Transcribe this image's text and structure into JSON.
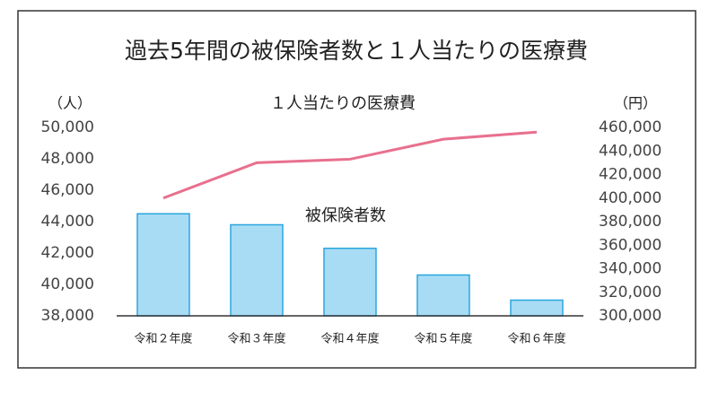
{
  "chart_data": {
    "type": "bar_line",
    "title": "過去5年間の被保険者数と１人当たりの医療費",
    "y_label": "（人）",
    "y2_label": "（円）",
    "categories": [
      "令和２年度",
      "令和３年度",
      "令和４年度",
      "令和５年度",
      "令和６年度"
    ],
    "series": [
      {
        "name": "被保険者数",
        "type": "bar",
        "color": "#a8dcf5",
        "edge_color": "#2aa6de",
        "values": [
          44500,
          43800,
          42300,
          40600,
          39000
        ]
      },
      {
        "name": "１人当たりの医療費",
        "type": "line",
        "axis": "y2",
        "color": "#e8708e",
        "values": [
          400000,
          430000,
          433000,
          450000,
          456000
        ]
      }
    ],
    "ylim": [
      38000,
      50000
    ],
    "yticks": [
      {
        "value": 38000,
        "label": "38,000"
      },
      {
        "value": 40000,
        "label": "40,000"
      },
      {
        "value": 42000,
        "label": "42,000"
      },
      {
        "value": 44000,
        "label": "44,000"
      },
      {
        "value": 46000,
        "label": "46,000"
      },
      {
        "value": 48000,
        "label": "48,000"
      },
      {
        "value": 50000,
        "label": "50,000"
      }
    ],
    "y2lim": [
      300000,
      460000
    ],
    "y2ticks": [
      {
        "value": 300000,
        "label": "300,000"
      },
      {
        "value": 320000,
        "label": "320,000"
      },
      {
        "value": 340000,
        "label": "340,000"
      },
      {
        "value": 360000,
        "label": "360,000"
      },
      {
        "value": 380000,
        "label": "380,000"
      },
      {
        "value": 400000,
        "label": "400,000"
      },
      {
        "value": 420000,
        "label": "420,000"
      },
      {
        "value": 440000,
        "label": "440,000"
      },
      {
        "value": 460000,
        "label": "460,000"
      }
    ],
    "grid": false
  }
}
